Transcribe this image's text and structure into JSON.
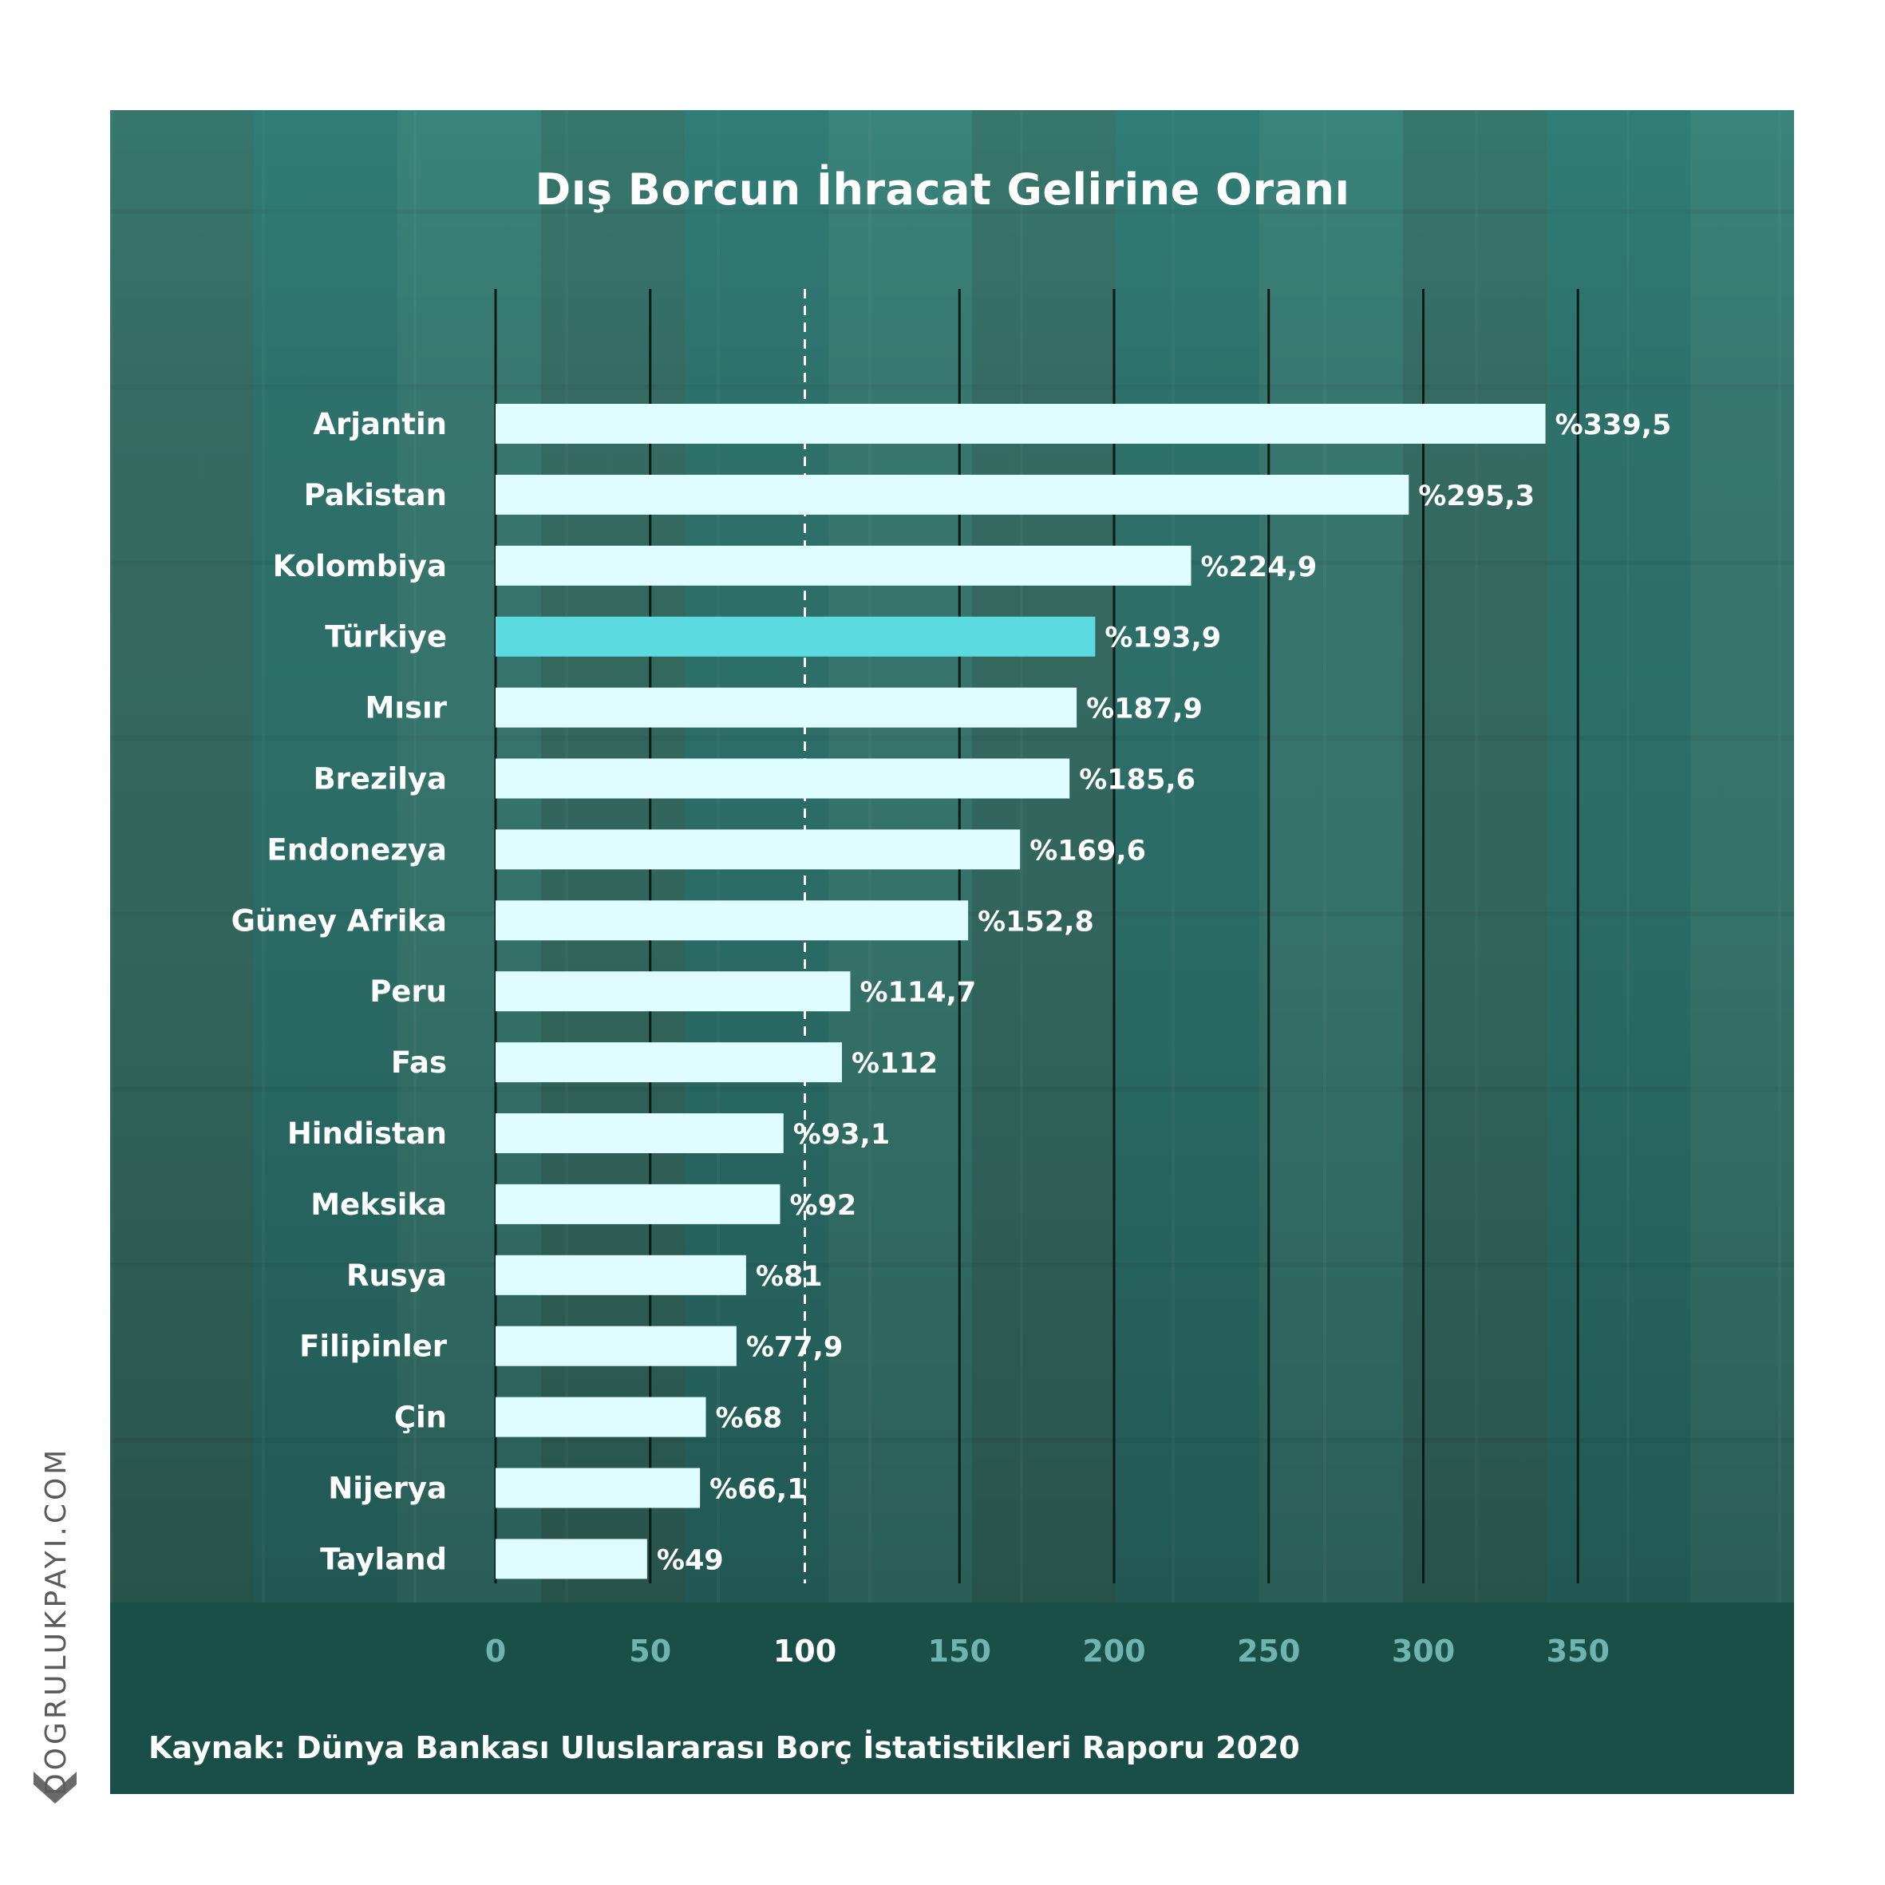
{
  "title": "Dış Borcun İhracat Gelirine Oranı",
  "source": "Kaynak: Dünya Bankası Uluslararası Borç İstatistikleri Raporu 2020",
  "brand": "DOGRULUKPAYI.COM",
  "colors": {
    "bar": "#dffdff",
    "highlight": "#5bdbe0",
    "tick_label": "#6fb4ae",
    "tick_label_emphasis": "#ffffff"
  },
  "chart_data": {
    "type": "bar",
    "orientation": "horizontal",
    "title": "Dış Borcun İhracat Gelirine Oranı",
    "categories": [
      "Arjantin",
      "Pakistan",
      "Kolombiya",
      "Türkiye",
      "Mısır",
      "Brezilya",
      "Endonezya",
      "Güney Afrika",
      "Peru",
      "Fas",
      "Hindistan",
      "Meksika",
      "Rusya",
      "Filipinler",
      "Çin",
      "Nijerya",
      "Tayland"
    ],
    "values": [
      339.5,
      295.3,
      224.9,
      193.9,
      187.9,
      185.6,
      169.6,
      152.8,
      114.7,
      112,
      93.1,
      92,
      81,
      77.9,
      68,
      66.1,
      49
    ],
    "value_labels": [
      "%339,5",
      "%295,3",
      "%224,9",
      "%193,9",
      "%187,9",
      "%185,6",
      "%169,6",
      "%152,8",
      "%114,7",
      "%112",
      "%93,1",
      "%92",
      "%81",
      "%77,9",
      "%68",
      "%66,1",
      "%49"
    ],
    "highlight_category": "Türkiye",
    "xticks": [
      0,
      50,
      100,
      150,
      200,
      250,
      300,
      350
    ],
    "xtick_labels": [
      "0",
      "50",
      "100",
      "150",
      "200",
      "250",
      "300",
      "350"
    ],
    "reference_line": 100,
    "xlim": [
      0,
      350
    ],
    "grid": true,
    "xlabel": "",
    "ylabel": ""
  }
}
